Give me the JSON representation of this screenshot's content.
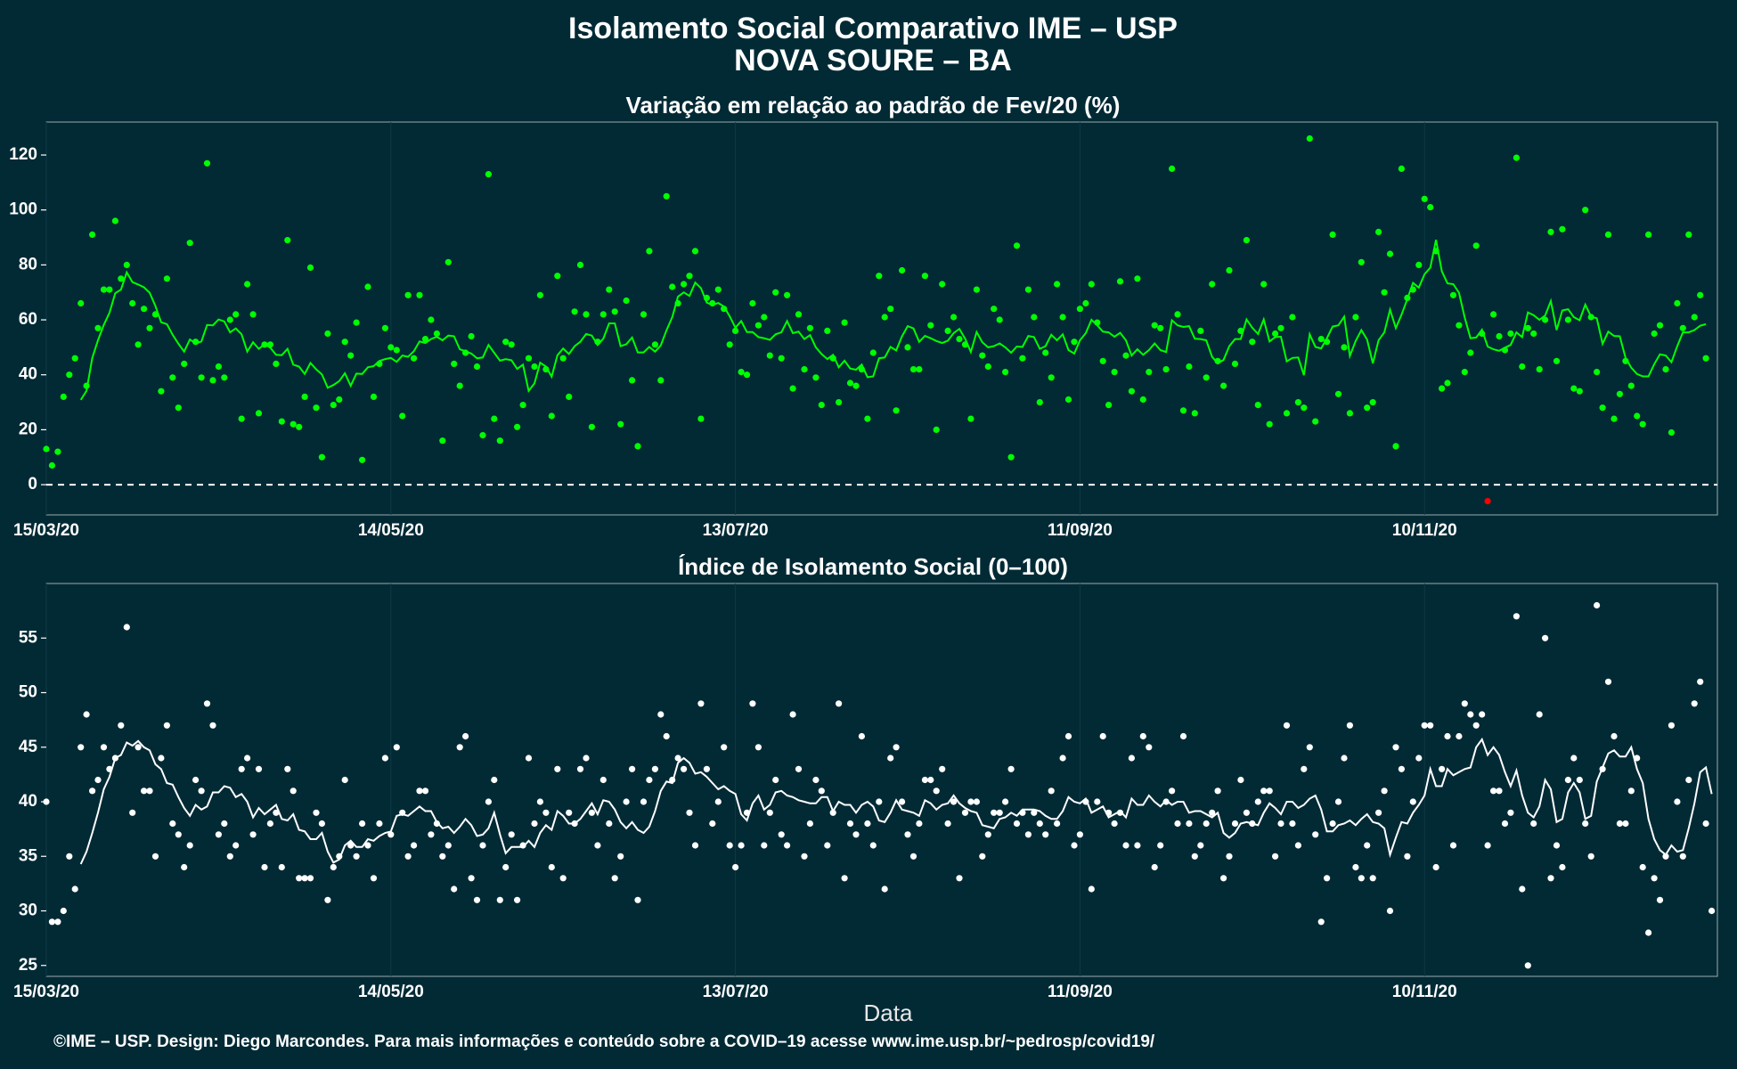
{
  "title": "Isolamento Social Comparativo IME – USP",
  "subtitle": "NOVA SOURE – BA",
  "xlabel": "Data",
  "footer": "©IME – USP. Design: Diego Marcondes. Para mais informações e conteúdo sobre a COVID–19 acesse www.ime.usp.br/~pedrosp/covid19/",
  "colors": {
    "background": "#022a35",
    "top_series": "#00ff00",
    "top_negative": "#ff0000",
    "bottom_series": "#ffffff",
    "grid": "#0d3a46"
  },
  "x_ticks": [
    {
      "day": 0,
      "label": "15/03/20"
    },
    {
      "day": 60,
      "label": "14/05/20"
    },
    {
      "day": 120,
      "label": "13/07/20"
    },
    {
      "day": 180,
      "label": "11/09/20"
    },
    {
      "day": 240,
      "label": "10/11/20"
    }
  ],
  "chart_data": [
    {
      "type": "scatter",
      "title": "Variação em relação ao padrão de Fev/20 (%)",
      "x_start": "15/03/20",
      "x_range_days": [
        0,
        291
      ],
      "ylim": [
        -11,
        132
      ],
      "yticks": [
        0,
        20,
        40,
        60,
        80,
        100,
        120
      ],
      "reference_line": 0,
      "series": [
        {
          "name": "",
          "values": [
            13,
            7,
            12,
            32,
            40,
            46,
            66,
            36,
            91,
            57,
            71,
            71,
            96,
            75,
            80,
            66,
            51,
            64,
            57,
            62,
            34,
            75,
            39,
            28,
            44,
            88,
            52,
            39,
            117,
            38,
            43,
            39,
            60,
            62,
            24,
            73,
            62,
            26,
            51,
            51,
            44,
            23,
            89,
            22,
            21,
            32,
            79,
            28,
            10,
            55,
            29,
            31,
            52,
            47,
            59,
            9,
            72,
            32,
            44,
            57,
            50,
            49,
            25,
            69,
            46,
            69,
            53,
            60,
            55,
            16,
            81,
            44,
            36,
            48,
            54,
            43,
            18,
            113,
            24,
            16,
            52,
            51,
            21,
            29,
            46,
            43,
            69,
            42,
            25,
            76,
            46,
            32,
            63,
            80,
            62,
            21,
            52,
            62,
            71,
            63,
            22,
            67,
            38,
            14,
            62,
            85,
            51,
            38,
            105,
            72,
            66,
            73,
            76,
            85,
            24,
            68,
            66,
            71,
            64,
            51,
            56,
            41,
            40,
            66,
            58,
            61,
            47,
            70,
            46,
            69,
            35,
            62,
            42,
            57,
            39,
            29,
            56,
            46,
            30,
            59,
            37,
            36,
            42,
            24,
            48,
            76,
            61,
            64,
            27,
            78,
            50,
            42,
            42,
            76,
            58,
            20,
            73,
            56,
            61,
            53,
            51,
            24,
            71,
            47,
            43,
            64,
            60,
            41,
            10,
            87,
            46,
            71,
            61,
            30,
            48,
            39,
            73,
            61,
            31,
            52,
            64,
            66,
            73,
            59,
            45,
            29,
            41,
            74,
            47,
            34,
            75,
            31,
            41,
            58,
            57,
            42,
            115,
            62,
            27,
            43,
            26,
            56,
            39,
            73,
            45,
            36,
            78,
            44,
            56,
            89,
            52,
            29,
            73,
            22,
            55,
            57,
            26,
            61,
            30,
            28,
            126,
            23,
            53,
            52,
            91,
            33,
            50,
            26,
            61,
            81,
            28,
            30,
            92,
            70,
            84,
            14,
            115,
            68,
            71,
            80,
            104,
            101,
            85,
            35,
            37,
            69,
            58,
            41,
            48,
            87,
            55,
            -6,
            62,
            54,
            49,
            55,
            119,
            43,
            57,
            55,
            42,
            60,
            92,
            45,
            93,
            60,
            35,
            34,
            100,
            61,
            41,
            28,
            91,
            24,
            33,
            45,
            36,
            25,
            22,
            91,
            55,
            58,
            42,
            19,
            66,
            57,
            91,
            61,
            69,
            46
          ]
        }
      ]
    },
    {
      "type": "scatter",
      "title": "Índice de Isolamento Social (0–100)",
      "x_start": "15/03/20",
      "x_range_days": [
        0,
        291
      ],
      "ylim": [
        24,
        60
      ],
      "yticks": [
        25,
        30,
        35,
        40,
        45,
        50,
        55
      ],
      "series": [
        {
          "name": "",
          "values": [
            40,
            29,
            29,
            30,
            35,
            32,
            45,
            48,
            41,
            42,
            45,
            43,
            44,
            47,
            56,
            39,
            45,
            41,
            41,
            35,
            44,
            47,
            38,
            37,
            34,
            36,
            42,
            41,
            49,
            47,
            37,
            38,
            35,
            36,
            43,
            44,
            37,
            43,
            34,
            38,
            39,
            34,
            43,
            41,
            33,
            33,
            33,
            39,
            38,
            31,
            34,
            35,
            42,
            36,
            35,
            38,
            36,
            33,
            38,
            44,
            37,
            45,
            39,
            35,
            36,
            41,
            41,
            37,
            38,
            35,
            36,
            32,
            45,
            46,
            33,
            31,
            36,
            40,
            42,
            31,
            34,
            37,
            31,
            36,
            44,
            38,
            40,
            39,
            34,
            43,
            33,
            39,
            38,
            43,
            44,
            39,
            36,
            42,
            38,
            33,
            35,
            40,
            43,
            31,
            40,
            42,
            43,
            48,
            46,
            42,
            44,
            43,
            39,
            36,
            49,
            43,
            38,
            40,
            45,
            36,
            34,
            36,
            39,
            49,
            45,
            36,
            39,
            42,
            37,
            36,
            48,
            43,
            35,
            38,
            42,
            41,
            36,
            39,
            49,
            33,
            38,
            37,
            46,
            38,
            36,
            40,
            32,
            44,
            45,
            40,
            37,
            35,
            38,
            42,
            42,
            41,
            43,
            38,
            40,
            33,
            39,
            40,
            40,
            35,
            37,
            39,
            39,
            40,
            43,
            38,
            39,
            37,
            39,
            38,
            37,
            41,
            38,
            44,
            46,
            36,
            37,
            40,
            32,
            40,
            46,
            39,
            38,
            39,
            36,
            44,
            36,
            46,
            45,
            34,
            36,
            40,
            41,
            38,
            46,
            38,
            35,
            36,
            38,
            39,
            41,
            33,
            35,
            38,
            42,
            39,
            38,
            40,
            41,
            41,
            35,
            38,
            47,
            38,
            36,
            43,
            45,
            37,
            29,
            33,
            38,
            40,
            44,
            47,
            34,
            33,
            36,
            33,
            39,
            41,
            30,
            45,
            43,
            35,
            40,
            44,
            47,
            47,
            34,
            43,
            46,
            36,
            46,
            49,
            48,
            47,
            48,
            36,
            41,
            41,
            38,
            39,
            57,
            32,
            25,
            38,
            48,
            55,
            33,
            36,
            34,
            42,
            44,
            42,
            38,
            35,
            58,
            43,
            51,
            46,
            38,
            38,
            41,
            44,
            34,
            28,
            33,
            31,
            35,
            47,
            40,
            35,
            42,
            49,
            51,
            38,
            30
          ]
        }
      ]
    }
  ]
}
